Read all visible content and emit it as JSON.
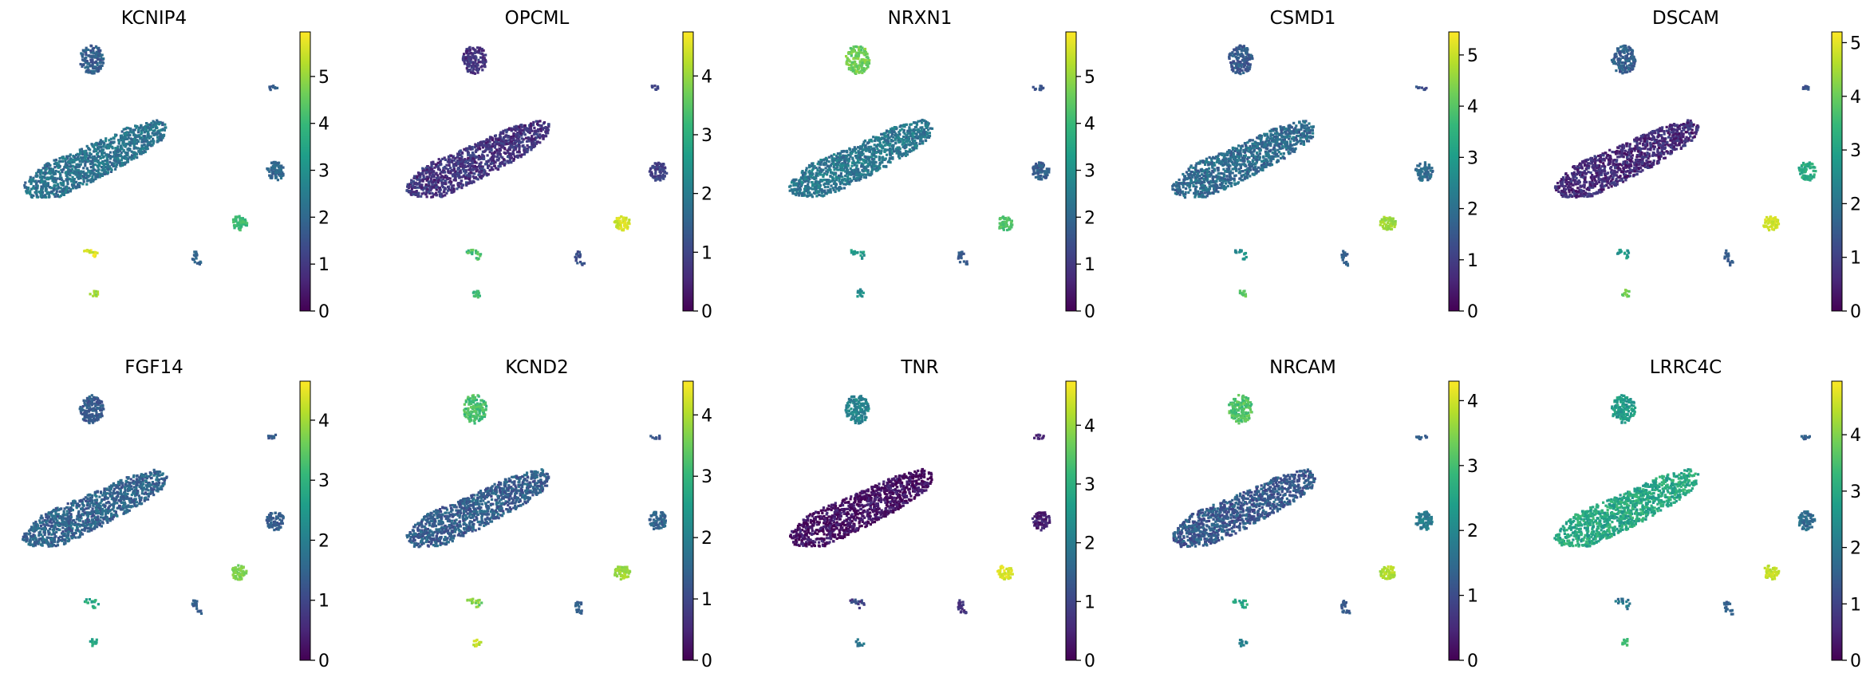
{
  "figure": {
    "colormap": "viridis",
    "colormap_stops": [
      "#440154",
      "#482878",
      "#3e4989",
      "#31688e",
      "#26828e",
      "#1f9e89",
      "#35b779",
      "#6ece58",
      "#b5de2b",
      "#fde725"
    ],
    "background": "#ffffff"
  },
  "chart_data": [
    {
      "type": "scatter",
      "title": "KCNIP4",
      "colorbar": {
        "vmin": 0,
        "vmax": 5.95,
        "ticks": [
          0,
          1,
          2,
          3,
          4,
          5
        ]
      },
      "levels": {
        "main": 0.38,
        "upper_blob": 0.3,
        "right_small": 0.3,
        "right_mid": 0.33,
        "green_blob": 0.68,
        "lower_frag": 0.95,
        "lower_dot": 0.85,
        "right_low": 0.32
      }
    },
    {
      "type": "scatter",
      "title": "OPCML",
      "colorbar": {
        "vmin": 0,
        "vmax": 4.75,
        "ticks": [
          0,
          1,
          2,
          3,
          4
        ]
      },
      "levels": {
        "main": 0.15,
        "upper_blob": 0.14,
        "right_small": 0.22,
        "right_mid": 0.2,
        "green_blob": 0.93,
        "lower_frag": 0.7,
        "lower_dot": 0.68,
        "right_low": 0.25
      }
    },
    {
      "type": "scatter",
      "title": "NRXN1",
      "colorbar": {
        "vmin": 0,
        "vmax": 5.95,
        "ticks": [
          0,
          1,
          2,
          3,
          4,
          5
        ]
      },
      "levels": {
        "main": 0.4,
        "upper_blob": 0.78,
        "right_small": 0.28,
        "right_mid": 0.3,
        "green_blob": 0.72,
        "lower_frag": 0.55,
        "lower_dot": 0.5,
        "right_low": 0.28
      }
    },
    {
      "type": "scatter",
      "title": "CSMD1",
      "colorbar": {
        "vmin": 0,
        "vmax": 5.45,
        "ticks": [
          0,
          1,
          2,
          3,
          4,
          5
        ]
      },
      "levels": {
        "main": 0.35,
        "upper_blob": 0.28,
        "right_small": 0.25,
        "right_mid": 0.35,
        "green_blob": 0.85,
        "lower_frag": 0.5,
        "lower_dot": 0.75,
        "right_low": 0.3
      }
    },
    {
      "type": "scatter",
      "title": "DSCAM",
      "colorbar": {
        "vmin": 0,
        "vmax": 5.2,
        "ticks": [
          0,
          1,
          2,
          3,
          4,
          5
        ]
      },
      "levels": {
        "main": 0.12,
        "upper_blob": 0.3,
        "right_small": 0.25,
        "right_mid": 0.62,
        "green_blob": 0.93,
        "lower_frag": 0.55,
        "lower_dot": 0.78,
        "right_low": 0.28
      }
    },
    {
      "type": "scatter",
      "title": "FGF14",
      "colorbar": {
        "vmin": 0,
        "vmax": 4.65,
        "ticks": [
          0,
          1,
          2,
          3,
          4
        ]
      },
      "levels": {
        "main": 0.32,
        "upper_blob": 0.28,
        "right_small": 0.28,
        "right_mid": 0.3,
        "green_blob": 0.8,
        "lower_frag": 0.6,
        "lower_dot": 0.6,
        "right_low": 0.3
      }
    },
    {
      "type": "scatter",
      "title": "KCND2",
      "colorbar": {
        "vmin": 0,
        "vmax": 4.55,
        "ticks": [
          0,
          1,
          2,
          3,
          4
        ]
      },
      "levels": {
        "main": 0.3,
        "upper_blob": 0.7,
        "right_small": 0.25,
        "right_mid": 0.32,
        "green_blob": 0.85,
        "lower_frag": 0.8,
        "lower_dot": 0.9,
        "right_low": 0.3
      }
    },
    {
      "type": "scatter",
      "title": "TNR",
      "colorbar": {
        "vmin": 0,
        "vmax": 4.75,
        "ticks": [
          0,
          1,
          2,
          3,
          4
        ]
      },
      "levels": {
        "main": 0.04,
        "upper_blob": 0.45,
        "right_small": 0.08,
        "right_mid": 0.08,
        "green_blob": 0.95,
        "lower_frag": 0.2,
        "lower_dot": 0.38,
        "right_low": 0.15
      }
    },
    {
      "type": "scatter",
      "title": "NRCAM",
      "colorbar": {
        "vmin": 0,
        "vmax": 4.3,
        "ticks": [
          0,
          1,
          2,
          3,
          4
        ]
      },
      "levels": {
        "main": 0.28,
        "upper_blob": 0.72,
        "right_small": 0.3,
        "right_mid": 0.42,
        "green_blob": 0.88,
        "lower_frag": 0.6,
        "lower_dot": 0.45,
        "right_low": 0.28
      }
    },
    {
      "type": "scatter",
      "title": "LRRC4C",
      "colorbar": {
        "vmin": 0,
        "vmax": 4.95,
        "ticks": [
          0,
          1,
          2,
          3,
          4
        ]
      },
      "levels": {
        "main": 0.6,
        "upper_blob": 0.55,
        "right_small": 0.3,
        "right_mid": 0.35,
        "green_blob": 0.92,
        "lower_frag": 0.4,
        "lower_dot": 0.7,
        "right_low": 0.3
      }
    }
  ]
}
